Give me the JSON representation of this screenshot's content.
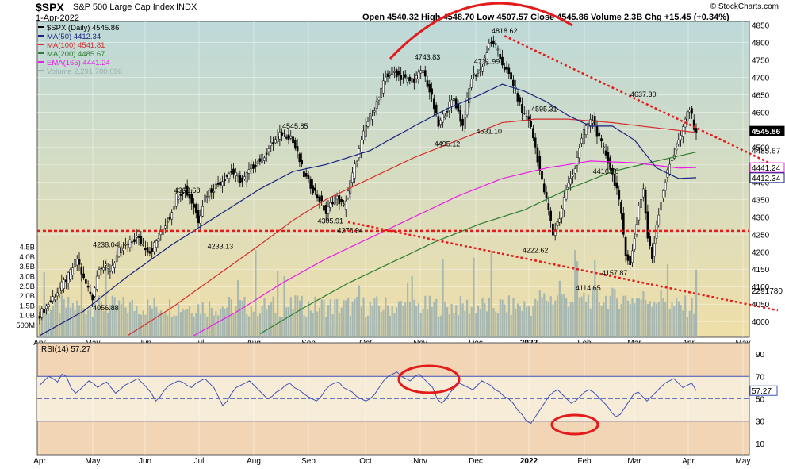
{
  "header": {
    "symbol": "$SPX",
    "name": "S&P 500 Large Cap Index",
    "exchange": "INDX",
    "date": "1-Apr-2022",
    "ohlc_line": "Open 4540.32  High 4548.70  Low 4507.57  Close 4545.86  Volume 2.3B  Chg +15.45 (+0.34%)",
    "credit": "© StockCharts.com"
  },
  "colors": {
    "price_bg_top": "#bdd9d9",
    "price_bg_bottom": "#f0dfa8",
    "rsi_bg": "#f2d5b4",
    "ma50": "#1a237e",
    "ma100": "#d32f2f",
    "ma200": "#2e7d32",
    "ema165": "#e91ee6",
    "volume": "#9ab0b0",
    "rsi_line": "#3f51b5",
    "annotation": "#e41b1b"
  },
  "chart_data": [
    {
      "type": "candlestick",
      "title": "$SPX S&P 500 Large Cap Index INDX",
      "legend": [
        {
          "label": "$SPX (Daily) 4545.86",
          "color": "#000000"
        },
        {
          "label": "MA(50) 4412.34",
          "color": "#1a237e"
        },
        {
          "label": "MA(100) 4541.81",
          "color": "#d32f2f"
        },
        {
          "label": "MA(200) 4485.67",
          "color": "#2e7d32"
        },
        {
          "label": "EMA(165) 4441.24",
          "color": "#e91ee6"
        },
        {
          "label": "Volume 2,291,780,096",
          "color": "#9ab0b0"
        }
      ],
      "x_ticks": [
        "Apr",
        "May",
        "Jun",
        "Jul",
        "Aug",
        "Sep",
        "Oct",
        "Nov",
        "Dec",
        "2022",
        "Feb",
        "Mar",
        "Apr",
        "May"
      ],
      "y_ticks": [
        4000,
        4050,
        4100,
        4150,
        4200,
        4250,
        4300,
        4350,
        4400,
        4450,
        4500,
        4550,
        4600,
        4650,
        4700,
        4750,
        4800,
        4850
      ],
      "ylim": [
        3955,
        4860
      ],
      "volume_ticks": [
        "500M",
        "1.0B",
        "1.5B",
        "2.0B",
        "2.5B",
        "3.0B",
        "3.5B",
        "4.0B",
        "4.5B"
      ],
      "price_path": [
        [
          0,
          4020
        ],
        [
          5,
          4060
        ],
        [
          13,
          4130
        ],
        [
          17,
          4180
        ],
        [
          20,
          4120
        ],
        [
          24,
          4070
        ],
        [
          27,
          4160
        ],
        [
          32,
          4150
        ],
        [
          36,
          4200
        ],
        [
          40,
          4220
        ],
        [
          44,
          4240
        ],
        [
          50,
          4200
        ],
        [
          54,
          4240
        ],
        [
          57,
          4280
        ],
        [
          59,
          4300
        ],
        [
          62,
          4360
        ],
        [
          66,
          4380
        ],
        [
          70,
          4330
        ],
        [
          72,
          4290
        ],
        [
          75,
          4360
        ],
        [
          82,
          4400
        ],
        [
          87,
          4430
        ],
        [
          92,
          4400
        ],
        [
          96,
          4440
        ],
        [
          101,
          4470
        ],
        [
          107,
          4520
        ],
        [
          110,
          4540
        ],
        [
          114,
          4530
        ],
        [
          117,
          4480
        ],
        [
          120,
          4420
        ],
        [
          124,
          4380
        ],
        [
          127,
          4350
        ],
        [
          130,
          4310
        ],
        [
          134,
          4360
        ],
        [
          138,
          4330
        ],
        [
          142,
          4420
        ],
        [
          148,
          4560
        ],
        [
          151,
          4600
        ],
        [
          154,
          4640
        ],
        [
          157,
          4700
        ],
        [
          160,
          4720
        ],
        [
          164,
          4700
        ],
        [
          168,
          4690
        ],
        [
          171,
          4700
        ],
        [
          174,
          4720
        ],
        [
          178,
          4640
        ],
        [
          181,
          4560
        ],
        [
          184,
          4600
        ],
        [
          188,
          4640
        ],
        [
          192,
          4560
        ],
        [
          196,
          4700
        ],
        [
          200,
          4720
        ],
        [
          204,
          4790
        ],
        [
          206,
          4800
        ],
        [
          210,
          4740
        ],
        [
          215,
          4680
        ],
        [
          219,
          4600
        ],
        [
          222,
          4580
        ],
        [
          225,
          4500
        ],
        [
          228,
          4400
        ],
        [
          231,
          4320
        ],
        [
          233,
          4250
        ],
        [
          236,
          4300
        ],
        [
          239,
          4380
        ],
        [
          242,
          4420
        ],
        [
          245,
          4500
        ],
        [
          248,
          4560
        ],
        [
          251,
          4580
        ],
        [
          254,
          4520
        ],
        [
          257,
          4480
        ],
        [
          260,
          4420
        ],
        [
          262,
          4380
        ],
        [
          264,
          4300
        ],
        [
          266,
          4200
        ],
        [
          268,
          4160
        ],
        [
          270,
          4240
        ],
        [
          272,
          4330
        ],
        [
          274,
          4380
        ],
        [
          276,
          4240
        ],
        [
          278,
          4180
        ],
        [
          280,
          4280
        ],
        [
          283,
          4380
        ],
        [
          286,
          4450
        ],
        [
          289,
          4500
        ],
        [
          292,
          4550
        ],
        [
          294,
          4600
        ],
        [
          295,
          4610
        ],
        [
          297,
          4560
        ],
        [
          298,
          4545.86
        ]
      ],
      "ma50": {
        "name": "MA(50)",
        "path": [
          [
            0,
            3960
          ],
          [
            20,
            4030
          ],
          [
            40,
            4130
          ],
          [
            60,
            4220
          ],
          [
            80,
            4300
          ],
          [
            100,
            4380
          ],
          [
            115,
            4430
          ],
          [
            130,
            4450
          ],
          [
            150,
            4490
          ],
          [
            170,
            4560
          ],
          [
            185,
            4610
          ],
          [
            200,
            4650
          ],
          [
            210,
            4680
          ],
          [
            220,
            4660
          ],
          [
            230,
            4630
          ],
          [
            240,
            4590
          ],
          [
            250,
            4560
          ],
          [
            260,
            4560
          ],
          [
            270,
            4520
          ],
          [
            280,
            4440
          ],
          [
            290,
            4410
          ],
          [
            298,
            4412.34
          ]
        ]
      },
      "ma100": {
        "name": "MA(100)",
        "path": [
          [
            40,
            3960
          ],
          [
            60,
            4040
          ],
          [
            80,
            4130
          ],
          [
            100,
            4220
          ],
          [
            115,
            4290
          ],
          [
            130,
            4350
          ],
          [
            150,
            4410
          ],
          [
            170,
            4470
          ],
          [
            190,
            4520
          ],
          [
            210,
            4570
          ],
          [
            225,
            4580
          ],
          [
            240,
            4580
          ],
          [
            260,
            4570
          ],
          [
            280,
            4555
          ],
          [
            298,
            4541.81
          ]
        ]
      },
      "ma200": {
        "name": "MA(200)",
        "path": [
          [
            100,
            3965
          ],
          [
            120,
            4040
          ],
          [
            140,
            4110
          ],
          [
            160,
            4170
          ],
          [
            180,
            4230
          ],
          [
            200,
            4280
          ],
          [
            220,
            4320
          ],
          [
            240,
            4380
          ],
          [
            260,
            4430
          ],
          [
            280,
            4460
          ],
          [
            298,
            4485.67
          ]
        ]
      },
      "ema165": {
        "name": "EMA(165)",
        "path": [
          [
            70,
            3960
          ],
          [
            90,
            4030
          ],
          [
            110,
            4110
          ],
          [
            130,
            4180
          ],
          [
            150,
            4240
          ],
          [
            170,
            4300
          ],
          [
            190,
            4360
          ],
          [
            210,
            4410
          ],
          [
            230,
            4440
          ],
          [
            250,
            4460
          ],
          [
            270,
            4455
          ],
          [
            290,
            4440
          ],
          [
            298,
            4441.24
          ]
        ]
      },
      "price_labels": [
        {
          "text": "4238.04",
          "x": 30,
          "y": 4238.04
        },
        {
          "text": "4056.88",
          "x": 30,
          "y": 4056.88
        },
        {
          "text": "4233.13",
          "x": 82,
          "y": 4233.13
        },
        {
          "text": "4393.68",
          "x": 67,
          "y": 4393.68
        },
        {
          "text": "4545.85",
          "x": 116,
          "y": 4545.85
        },
        {
          "text": "4305.91",
          "x": 132,
          "y": 4305.91
        },
        {
          "text": "4278.94",
          "x": 141,
          "y": 4278.94
        },
        {
          "text": "4743.83",
          "x": 176,
          "y": 4743.83
        },
        {
          "text": "4731.99",
          "x": 203,
          "y": 4731.99
        },
        {
          "text": "4495.12",
          "x": 185,
          "y": 4495.12
        },
        {
          "text": "4531.10",
          "x": 204,
          "y": 4531.1
        },
        {
          "text": "4818.62",
          "x": 211,
          "y": 4818.62
        },
        {
          "text": "4595.31",
          "x": 229,
          "y": 4595.31
        },
        {
          "text": "4222.62",
          "x": 225,
          "y": 4222.62
        },
        {
          "text": "4416.78",
          "x": 257,
          "y": 4416.78
        },
        {
          "text": "4114.65",
          "x": 249,
          "y": 4114.65
        },
        {
          "text": "4157.87",
          "x": 261,
          "y": 4157.87
        },
        {
          "text": "4637.30",
          "x": 274,
          "y": 4637.3
        }
      ],
      "axis_value_labels": [
        {
          "text": "4545.86",
          "y": 4545.86,
          "bg": "#000000",
          "fg": "#ffffff",
          "boxed": true
        },
        {
          "text": "4485.67",
          "y": 4485.67,
          "bg": "#2e7d32",
          "fg": "#000000",
          "boxed": false
        },
        {
          "text": "4441.24",
          "y": 4441.24,
          "bg": "#ffffff",
          "fg": "#000000",
          "border": "#e91ee6",
          "boxed": true
        },
        {
          "text": "4412.34",
          "y": 4412.34,
          "bg": "#ffffff",
          "fg": "#000000",
          "border": "#1a237e",
          "boxed": true
        },
        {
          "text": "2291780",
          "y": 4070,
          "bg": "",
          "fg": "#000000",
          "boxed": false
        }
      ],
      "support_line": {
        "y": 4260
      },
      "trendline_upper": [
        [
          211,
          4818.62
        ],
        [
          298,
          4555
        ]
      ],
      "trendline_lower": [
        [
          140,
          4285
        ],
        [
          298,
          4080
        ]
      ]
    },
    {
      "type": "line",
      "title": "RSI(14) 57.27",
      "series": [
        {
          "name": "RSI(14)",
          "values": [
            62,
            66,
            70,
            68,
            65,
            72,
            70,
            60,
            55,
            58,
            62,
            66,
            64,
            60,
            63,
            65,
            60,
            55,
            58,
            62,
            64,
            66,
            68,
            64,
            60,
            55,
            48,
            52,
            58,
            62,
            64,
            66,
            65,
            62,
            60,
            64,
            66,
            68,
            64,
            60,
            52,
            44,
            48,
            55,
            60,
            62,
            64,
            66,
            62,
            58,
            54,
            50,
            52,
            56,
            58,
            62,
            64,
            60,
            58,
            55,
            52,
            50,
            48,
            52,
            58,
            62,
            64,
            65,
            60,
            58,
            56,
            52,
            50,
            48,
            50,
            54,
            60,
            66,
            70,
            72,
            74,
            70,
            68,
            66,
            70,
            72,
            68,
            64,
            60,
            50,
            46,
            50,
            56,
            60,
            64,
            62,
            60,
            58,
            62,
            66,
            64,
            62,
            58,
            56,
            52,
            50,
            46,
            40,
            36,
            30,
            28,
            34,
            40,
            46,
            52,
            56,
            58,
            54,
            50,
            46,
            48,
            52,
            56,
            58,
            56,
            52,
            48,
            44,
            38,
            34,
            36,
            42,
            48,
            54,
            56,
            52,
            48,
            52,
            56,
            60,
            64,
            66,
            68,
            64,
            60,
            62,
            64,
            57.27
          ]
        }
      ],
      "x_ticks": [
        "Apr",
        "May",
        "Jun",
        "Jul",
        "Aug",
        "Sep",
        "Oct",
        "Nov",
        "Dec",
        "2022",
        "Feb",
        "Mar",
        "Apr",
        "May"
      ],
      "y_ticks": [
        10,
        30,
        50,
        70,
        90
      ],
      "ylim": [
        0,
        100
      ],
      "last_value_label": "57.27"
    }
  ]
}
